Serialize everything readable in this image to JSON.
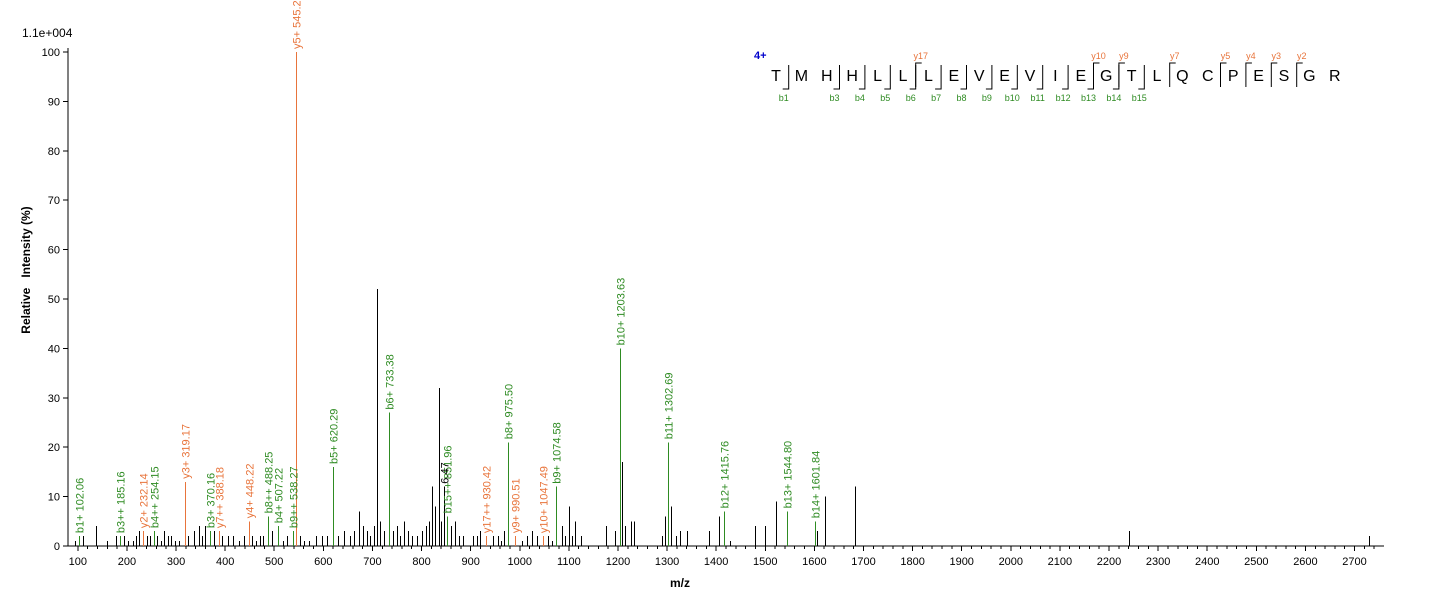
{
  "chart_data": {
    "type": "bar",
    "title": "",
    "scale_label": "1.1e+004",
    "xlabel": "m/z",
    "ylabel": "Relative   Intensity (%)",
    "xlim": [
      80,
      2760
    ],
    "ylim": [
      0,
      100
    ],
    "xticks": [
      100,
      200,
      300,
      400,
      500,
      600,
      700,
      800,
      900,
      1000,
      1100,
      1200,
      1300,
      1400,
      1500,
      1600,
      1700,
      1800,
      1900,
      2000,
      2100,
      2200,
      2300,
      2400,
      2500,
      2600,
      2700
    ],
    "yticks": [
      0,
      10,
      20,
      30,
      40,
      50,
      60,
      70,
      80,
      90,
      100
    ],
    "colors": {
      "b": "#2e8b22",
      "y": "#e8743b",
      "other": "#000000",
      "charge": "#0000cc"
    },
    "labeled_peaks": [
      {
        "mz": 102.06,
        "intensity": 2,
        "type": "b",
        "label": "b1+ 102.06"
      },
      {
        "mz": 185.16,
        "intensity": 2,
        "type": "b",
        "label": "b3++ 185.16"
      },
      {
        "mz": 232.14,
        "intensity": 3,
        "type": "y",
        "label": "y2+ 232.14"
      },
      {
        "mz": 254.15,
        "intensity": 3,
        "type": "b",
        "label": "b4++ 254.15"
      },
      {
        "mz": 319.17,
        "intensity": 13,
        "type": "y",
        "label": "y3+ 319.17"
      },
      {
        "mz": 370.16,
        "intensity": 3,
        "type": "b",
        "label": "b3+ 370.16"
      },
      {
        "mz": 388.18,
        "intensity": 3,
        "type": "y",
        "label": "y7++ 388.18"
      },
      {
        "mz": 448.22,
        "intensity": 5,
        "type": "y",
        "label": "y4+ 448.22"
      },
      {
        "mz": 488.25,
        "intensity": 6,
        "type": "b",
        "label": "b8++ 488.25"
      },
      {
        "mz": 507.22,
        "intensity": 4,
        "type": "b",
        "label": "b4+ 507.22"
      },
      {
        "mz": 538.27,
        "intensity": 3,
        "type": "b",
        "label": "b9++ 538.27"
      },
      {
        "mz": 545.27,
        "intensity": 100,
        "type": "y",
        "label": "y5+ 545.27"
      },
      {
        "mz": 620.29,
        "intensity": 16,
        "type": "b",
        "label": "b5+ 620.29"
      },
      {
        "mz": 733.38,
        "intensity": 27,
        "type": "b",
        "label": "b6+ 733.38"
      },
      {
        "mz": 851.96,
        "intensity": 6,
        "type": "b",
        "label": "b15++ 851.96"
      },
      {
        "mz": 846.47,
        "intensity": 12,
        "type": "other",
        "label": "6.47"
      },
      {
        "mz": 930.42,
        "intensity": 2,
        "type": "y",
        "label": "y17++ 930.42"
      },
      {
        "mz": 975.5,
        "intensity": 21,
        "type": "b",
        "label": "b8+ 975.50"
      },
      {
        "mz": 990.51,
        "intensity": 2,
        "type": "y",
        "label": "y9+ 990.51"
      },
      {
        "mz": 1047.49,
        "intensity": 2,
        "type": "y",
        "label": "y10+ 1047.49"
      },
      {
        "mz": 1074.58,
        "intensity": 12,
        "type": "b",
        "label": "b9+ 1074.58"
      },
      {
        "mz": 1203.63,
        "intensity": 40,
        "type": "b",
        "label": "b10+ 1203.63"
      },
      {
        "mz": 1302.69,
        "intensity": 21,
        "type": "b",
        "label": "b11+ 1302.69"
      },
      {
        "mz": 1415.76,
        "intensity": 7,
        "type": "b",
        "label": "b12+ 1415.76"
      },
      {
        "mz": 1544.8,
        "intensity": 7,
        "type": "b",
        "label": "b13+ 1544.80"
      },
      {
        "mz": 1601.84,
        "intensity": 5,
        "type": "b",
        "label": "b14+ 1601.84"
      }
    ],
    "unlabeled_peaks": [
      {
        "mz": 95,
        "intensity": 1
      },
      {
        "mz": 110,
        "intensity": 2
      },
      {
        "mz": 138,
        "intensity": 4
      },
      {
        "mz": 160,
        "intensity": 1
      },
      {
        "mz": 178,
        "intensity": 2
      },
      {
        "mz": 195,
        "intensity": 2
      },
      {
        "mz": 203,
        "intensity": 1
      },
      {
        "mz": 212,
        "intensity": 1
      },
      {
        "mz": 218,
        "intensity": 2
      },
      {
        "mz": 224,
        "intensity": 3
      },
      {
        "mz": 240,
        "intensity": 2
      },
      {
        "mz": 246,
        "intensity": 2
      },
      {
        "mz": 262,
        "intensity": 2
      },
      {
        "mz": 270,
        "intensity": 1
      },
      {
        "mz": 276,
        "intensity": 3
      },
      {
        "mz": 283,
        "intensity": 2
      },
      {
        "mz": 290,
        "intensity": 2
      },
      {
        "mz": 298,
        "intensity": 1
      },
      {
        "mz": 306,
        "intensity": 1
      },
      {
        "mz": 325,
        "intensity": 2
      },
      {
        "mz": 336,
        "intensity": 3
      },
      {
        "mz": 346,
        "intensity": 4
      },
      {
        "mz": 352,
        "intensity": 2
      },
      {
        "mz": 360,
        "intensity": 4
      },
      {
        "mz": 378,
        "intensity": 3
      },
      {
        "mz": 394,
        "intensity": 2
      },
      {
        "mz": 405,
        "intensity": 2
      },
      {
        "mz": 415,
        "intensity": 2
      },
      {
        "mz": 428,
        "intensity": 1
      },
      {
        "mz": 438,
        "intensity": 2
      },
      {
        "mz": 455,
        "intensity": 2
      },
      {
        "mz": 463,
        "intensity": 1
      },
      {
        "mz": 470,
        "intensity": 2
      },
      {
        "mz": 477,
        "intensity": 2
      },
      {
        "mz": 495,
        "intensity": 3
      },
      {
        "mz": 518,
        "intensity": 1
      },
      {
        "mz": 527,
        "intensity": 2
      },
      {
        "mz": 552,
        "intensity": 2
      },
      {
        "mz": 560,
        "intensity": 1
      },
      {
        "mz": 570,
        "intensity": 1
      },
      {
        "mz": 585,
        "intensity": 2
      },
      {
        "mz": 598,
        "intensity": 2
      },
      {
        "mz": 608,
        "intensity": 2
      },
      {
        "mz": 630,
        "intensity": 2
      },
      {
        "mz": 642,
        "intensity": 3
      },
      {
        "mz": 655,
        "intensity": 2
      },
      {
        "mz": 663,
        "intensity": 3
      },
      {
        "mz": 672,
        "intensity": 7
      },
      {
        "mz": 680,
        "intensity": 4
      },
      {
        "mz": 688,
        "intensity": 3
      },
      {
        "mz": 695,
        "intensity": 2
      },
      {
        "mz": 704,
        "intensity": 4
      },
      {
        "mz": 709,
        "intensity": 52
      },
      {
        "mz": 716,
        "intensity": 5
      },
      {
        "mz": 723,
        "intensity": 3
      },
      {
        "mz": 742,
        "intensity": 3
      },
      {
        "mz": 750,
        "intensity": 4
      },
      {
        "mz": 757,
        "intensity": 2
      },
      {
        "mz": 765,
        "intensity": 5
      },
      {
        "mz": 772,
        "intensity": 3
      },
      {
        "mz": 780,
        "intensity": 2
      },
      {
        "mz": 790,
        "intensity": 2
      },
      {
        "mz": 800,
        "intensity": 3
      },
      {
        "mz": 810,
        "intensity": 4
      },
      {
        "mz": 816,
        "intensity": 5
      },
      {
        "mz": 822,
        "intensity": 12
      },
      {
        "mz": 828,
        "intensity": 8
      },
      {
        "mz": 835,
        "intensity": 32
      },
      {
        "mz": 840,
        "intensity": 5
      },
      {
        "mz": 860,
        "intensity": 4
      },
      {
        "mz": 868,
        "intensity": 5
      },
      {
        "mz": 876,
        "intensity": 2
      },
      {
        "mz": 884,
        "intensity": 2
      },
      {
        "mz": 905,
        "intensity": 2
      },
      {
        "mz": 912,
        "intensity": 2
      },
      {
        "mz": 920,
        "intensity": 3
      },
      {
        "mz": 945,
        "intensity": 2
      },
      {
        "mz": 955,
        "intensity": 2
      },
      {
        "mz": 962,
        "intensity": 1
      },
      {
        "mz": 968,
        "intensity": 3
      },
      {
        "mz": 1005,
        "intensity": 1
      },
      {
        "mz": 1015,
        "intensity": 2
      },
      {
        "mz": 1025,
        "intensity": 3
      },
      {
        "mz": 1035,
        "intensity": 2
      },
      {
        "mz": 1058,
        "intensity": 2
      },
      {
        "mz": 1066,
        "intensity": 1
      },
      {
        "mz": 1085,
        "intensity": 4
      },
      {
        "mz": 1092,
        "intensity": 2
      },
      {
        "mz": 1100,
        "intensity": 8
      },
      {
        "mz": 1106,
        "intensity": 2
      },
      {
        "mz": 1112,
        "intensity": 5
      },
      {
        "mz": 1125,
        "intensity": 2
      },
      {
        "mz": 1175,
        "intensity": 4
      },
      {
        "mz": 1193,
        "intensity": 3
      },
      {
        "mz": 1208,
        "intensity": 17
      },
      {
        "mz": 1215,
        "intensity": 4
      },
      {
        "mz": 1226,
        "intensity": 5
      },
      {
        "mz": 1232,
        "intensity": 5
      },
      {
        "mz": 1290,
        "intensity": 2
      },
      {
        "mz": 1296,
        "intensity": 6
      },
      {
        "mz": 1308,
        "intensity": 8
      },
      {
        "mz": 1318,
        "intensity": 2
      },
      {
        "mz": 1326,
        "intensity": 3
      },
      {
        "mz": 1340,
        "intensity": 3
      },
      {
        "mz": 1385,
        "intensity": 3
      },
      {
        "mz": 1405,
        "intensity": 6
      },
      {
        "mz": 1428,
        "intensity": 1
      },
      {
        "mz": 1480,
        "intensity": 4
      },
      {
        "mz": 1500,
        "intensity": 4
      },
      {
        "mz": 1522,
        "intensity": 9
      },
      {
        "mz": 1606,
        "intensity": 3
      },
      {
        "mz": 1622,
        "intensity": 10
      },
      {
        "mz": 1682,
        "intensity": 12
      },
      {
        "mz": 2240,
        "intensity": 3
      },
      {
        "mz": 2730,
        "intensity": 2
      }
    ],
    "sequence": {
      "charge": "4+",
      "residues": [
        "T",
        "M",
        "H",
        "H",
        "L",
        "L",
        "L",
        "E",
        "V",
        "E",
        "V",
        "I",
        "E",
        "G",
        "T",
        "L",
        "Q",
        "C",
        "P",
        "E",
        "S",
        "G",
        "R"
      ],
      "b_ions": [
        {
          "after": 1,
          "label": "b1"
        },
        {
          "after": 3,
          "label": "b3"
        },
        {
          "after": 4,
          "label": "b4"
        },
        {
          "after": 5,
          "label": "b5"
        },
        {
          "after": 6,
          "label": "b6"
        },
        {
          "after": 7,
          "label": "b7"
        },
        {
          "after": 8,
          "label": "b8"
        },
        {
          "after": 9,
          "label": "b9"
        },
        {
          "after": 10,
          "label": "b10"
        },
        {
          "after": 11,
          "label": "b11"
        },
        {
          "after": 12,
          "label": "b12"
        },
        {
          "after": 13,
          "label": "b13"
        },
        {
          "after": 14,
          "label": "b14"
        },
        {
          "after": 15,
          "label": "b15"
        }
      ],
      "y_ions": [
        {
          "after": 6,
          "label": "y17"
        },
        {
          "after": 13,
          "label": "y10"
        },
        {
          "after": 14,
          "label": "y9"
        },
        {
          "after": 16,
          "label": "y7"
        },
        {
          "after": 18,
          "label": "y5"
        },
        {
          "after": 19,
          "label": "y4"
        },
        {
          "after": 20,
          "label": "y3"
        },
        {
          "after": 21,
          "label": "y2"
        }
      ]
    }
  }
}
